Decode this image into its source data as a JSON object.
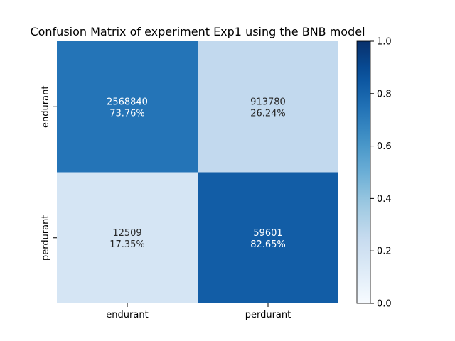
{
  "chart_data": {
    "type": "heatmap",
    "title": "Confusion Matrix of experiment Exp1 using the BNB model",
    "xlabel": "",
    "ylabel": "",
    "x_categories": [
      "endurant",
      "perdurant"
    ],
    "y_categories": [
      "endurant",
      "perdurant"
    ],
    "counts": [
      [
        2568840,
        913780
      ],
      [
        12509,
        59601
      ]
    ],
    "percent_labels": [
      [
        "73.76%",
        "26.24%"
      ],
      [
        "17.35%",
        "82.65%"
      ]
    ],
    "values": [
      [
        0.7376,
        0.2624
      ],
      [
        0.1735,
        0.8265
      ]
    ],
    "colorbar": {
      "min": 0.0,
      "max": 1.0,
      "ticks": [
        "0.0",
        "0.2",
        "0.4",
        "0.6",
        "0.8",
        "1.0"
      ],
      "colormap": "Blues"
    },
    "grid": false,
    "legend": "colorbar-right"
  }
}
